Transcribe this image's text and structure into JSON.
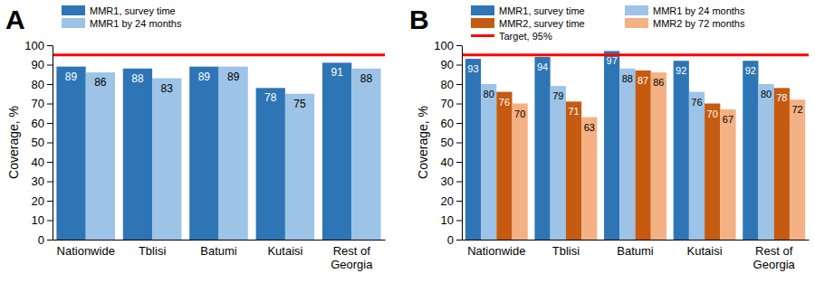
{
  "chart_data": [
    {
      "type": "bar",
      "title": "A",
      "y_label": "Coverage, %",
      "categories": [
        "Nationwide",
        "Tblisi",
        "Batumi",
        "Kutaisi",
        "Rest of Georgia"
      ],
      "series": [
        {
          "name": "MMR1, survey time",
          "color": "#2e75b6",
          "values": [
            89,
            88,
            89,
            78,
            91
          ]
        },
        {
          "name": "MMR1 by 24 months",
          "color": "#9dc3e6",
          "values": [
            86,
            83,
            89,
            75,
            88
          ]
        }
      ],
      "target": {
        "value": 95,
        "color": "#ff0000"
      },
      "ylim": [
        0,
        100
      ],
      "yticks": [
        0,
        10,
        20,
        30,
        40,
        50,
        60,
        70,
        80,
        90,
        100
      ],
      "grid": false,
      "data_labels": true,
      "legend": "top-left"
    },
    {
      "type": "bar",
      "title": "B",
      "y_label": "Coverage, %",
      "categories": [
        "Nationwide",
        "Tblisi",
        "Batumi",
        "Kutaisi",
        "Rest of Georgia"
      ],
      "series": [
        {
          "name": "MMR1, survey time",
          "color": "#2e75b6",
          "values": [
            93,
            94,
            97,
            92,
            92
          ]
        },
        {
          "name": "MMR1 by 24 months",
          "color": "#9dc3e6",
          "values": [
            80,
            79,
            88,
            76,
            80
          ]
        },
        {
          "name": "MMR2, survey time",
          "color": "#c55a11",
          "values": [
            76,
            71,
            87,
            70,
            78
          ]
        },
        {
          "name": "MMR2 by 72 months",
          "color": "#f4b183",
          "values": [
            70,
            63,
            86,
            67,
            72
          ]
        }
      ],
      "target": {
        "value": 95,
        "name": "Target, 95%",
        "color": "#ff0000"
      },
      "ylim": [
        0,
        100
      ],
      "yticks": [
        0,
        10,
        20,
        30,
        40,
        50,
        60,
        70,
        80,
        90,
        100
      ],
      "grid": false,
      "data_labels": true,
      "legend": "top-left"
    }
  ]
}
